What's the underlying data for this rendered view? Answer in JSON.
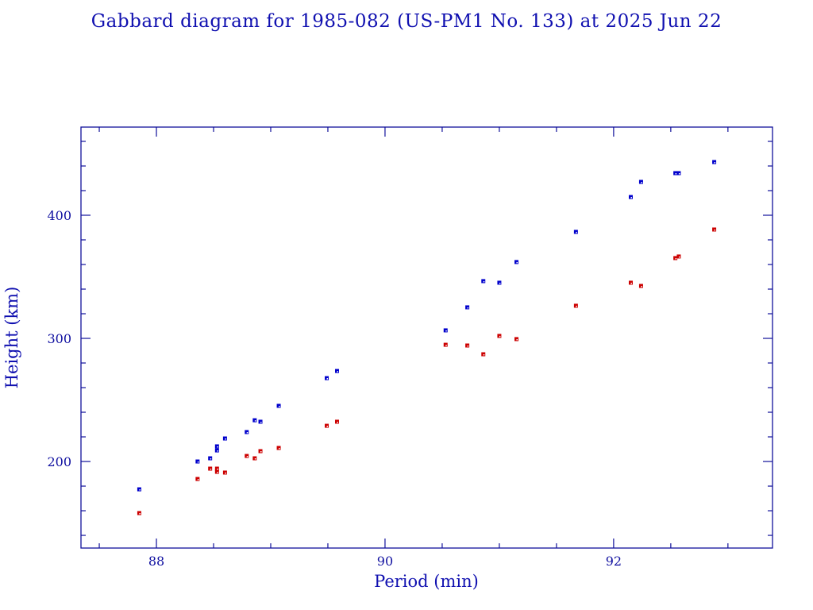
{
  "chart_data": {
    "type": "scatter",
    "title": "Gabbard diagram for 1985-082 (US-PM1 No. 133) at 2025 Jun 22",
    "xlabel": "Period (min)",
    "ylabel": "Height (km)",
    "xlim": [
      87.34,
      93.39
    ],
    "ylim": [
      129.7,
      471.6
    ],
    "xticks": [
      88,
      90,
      92
    ],
    "xtick_labels": [
      "88",
      "90",
      "92"
    ],
    "x_minor_step": 0.5,
    "yticks": [
      200,
      300,
      400
    ],
    "ytick_labels": [
      "200",
      "300",
      "400"
    ],
    "y_minor_step": 20,
    "grid": false,
    "colors": {
      "axis": "#10109a",
      "apogee": "#0000cc",
      "perigee": "#cc0000"
    },
    "x": [
      87.85,
      88.36,
      88.47,
      88.53,
      88.53,
      88.6,
      88.79,
      88.86,
      88.91,
      89.07,
      89.49,
      89.58,
      90.53,
      90.72,
      90.86,
      91.0,
      91.15,
      91.67,
      92.15,
      92.24,
      92.54,
      92.57,
      92.88
    ],
    "series": [
      {
        "name": "Apogee",
        "color": "#0000cc",
        "values": [
          177.4,
          200.0,
          202.6,
          209.0,
          212.3,
          218.7,
          223.9,
          233.5,
          232.3,
          245.2,
          267.7,
          273.5,
          306.5,
          325.2,
          346.5,
          345.2,
          362.0,
          386.5,
          414.8,
          427.1,
          434.2,
          434.2,
          443.2
        ]
      },
      {
        "name": "Perigee",
        "color": "#cc0000",
        "values": [
          158.1,
          185.8,
          194.2,
          194.2,
          191.6,
          191.0,
          204.5,
          202.6,
          208.4,
          211.0,
          229.0,
          232.3,
          294.8,
          294.2,
          287.1,
          302.0,
          299.4,
          326.5,
          345.2,
          342.6,
          365.2,
          366.5,
          388.4
        ]
      }
    ]
  }
}
